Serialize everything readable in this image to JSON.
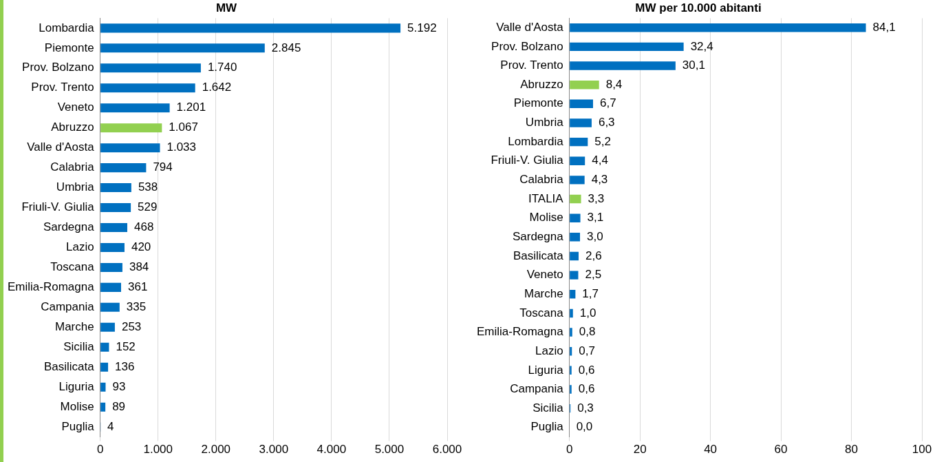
{
  "chart_data": [
    {
      "type": "bar",
      "orientation": "horizontal",
      "title": "MW",
      "grid": "x",
      "legend": false,
      "categories": [
        "Lombardia",
        "Piemonte",
        "Prov. Bolzano",
        "Prov. Trento",
        "Veneto",
        "Abruzzo",
        "Valle d'Aosta",
        "Calabria",
        "Umbria",
        "Friuli-V. Giulia",
        "Sardegna",
        "Lazio",
        "Toscana",
        "Emilia-Romagna",
        "Campania",
        "Marche",
        "Sicilia",
        "Basilicata",
        "Liguria",
        "Molise",
        "Puglia"
      ],
      "values": [
        5192,
        2845,
        1740,
        1642,
        1201,
        1067,
        1033,
        794,
        538,
        529,
        468,
        420,
        384,
        361,
        335,
        253,
        152,
        136,
        93,
        89,
        4
      ],
      "value_labels": [
        "5.192",
        "2.845",
        "1.740",
        "1.642",
        "1.201",
        "1.067",
        "1.033",
        "794",
        "538",
        "529",
        "468",
        "420",
        "384",
        "361",
        "335",
        "253",
        "152",
        "136",
        "93",
        "89",
        "4"
      ],
      "colors": [
        "#0070c0",
        "#0070c0",
        "#0070c0",
        "#0070c0",
        "#0070c0",
        "#92d050",
        "#0070c0",
        "#0070c0",
        "#0070c0",
        "#0070c0",
        "#0070c0",
        "#0070c0",
        "#0070c0",
        "#0070c0",
        "#0070c0",
        "#0070c0",
        "#0070c0",
        "#0070c0",
        "#0070c0",
        "#0070c0",
        "#0070c0"
      ],
      "xlim": [
        0,
        6000
      ],
      "xticks": [
        0,
        {
          "value": 1000,
          "label": "1.000"
        },
        {
          "value": 2000,
          "label": "2.000"
        },
        {
          "value": 3000,
          "label": "3.000"
        },
        {
          "value": 4000,
          "label": "4.000"
        },
        {
          "value": 5000,
          "label": "5.000"
        },
        {
          "value": 6000,
          "label": "6.000"
        }
      ]
    },
    {
      "type": "bar",
      "orientation": "horizontal",
      "title": "MW per 10.000 abitanti",
      "grid": "x",
      "legend": false,
      "categories": [
        "Valle d'Aosta",
        "Prov. Bolzano",
        "Prov. Trento",
        "Abruzzo",
        "Piemonte",
        "Umbria",
        "Lombardia",
        "Friuli-V. Giulia",
        "Calabria",
        "ITALIA",
        "Molise",
        "Sardegna",
        "Basilicata",
        "Veneto",
        "Marche",
        "Toscana",
        "Emilia-Romagna",
        "Lazio",
        "Liguria",
        "Campania",
        "Sicilia",
        "Puglia"
      ],
      "values": [
        84.1,
        32.4,
        30.1,
        8.4,
        6.7,
        6.3,
        5.2,
        4.4,
        4.3,
        3.3,
        3.1,
        3.0,
        2.6,
        2.5,
        1.7,
        1.0,
        0.8,
        0.7,
        0.6,
        0.6,
        0.3,
        0.0
      ],
      "value_labels": [
        "84,1",
        "32,4",
        "30,1",
        "8,4",
        "6,7",
        "6,3",
        "5,2",
        "4,4",
        "4,3",
        "3,3",
        "3,1",
        "3,0",
        "2,6",
        "2,5",
        "1,7",
        "1,0",
        "0,8",
        "0,7",
        "0,6",
        "0,6",
        "0,3",
        "0,0"
      ],
      "colors": [
        "#0070c0",
        "#0070c0",
        "#0070c0",
        "#92d050",
        "#0070c0",
        "#0070c0",
        "#0070c0",
        "#0070c0",
        "#0070c0",
        "#92d050",
        "#0070c0",
        "#0070c0",
        "#0070c0",
        "#0070c0",
        "#0070c0",
        "#0070c0",
        "#0070c0",
        "#0070c0",
        "#0070c0",
        "#0070c0",
        "#0070c0",
        "#0070c0"
      ],
      "xlim": [
        0,
        100
      ],
      "xticks": [
        0,
        20,
        40,
        60,
        80,
        100
      ]
    }
  ]
}
